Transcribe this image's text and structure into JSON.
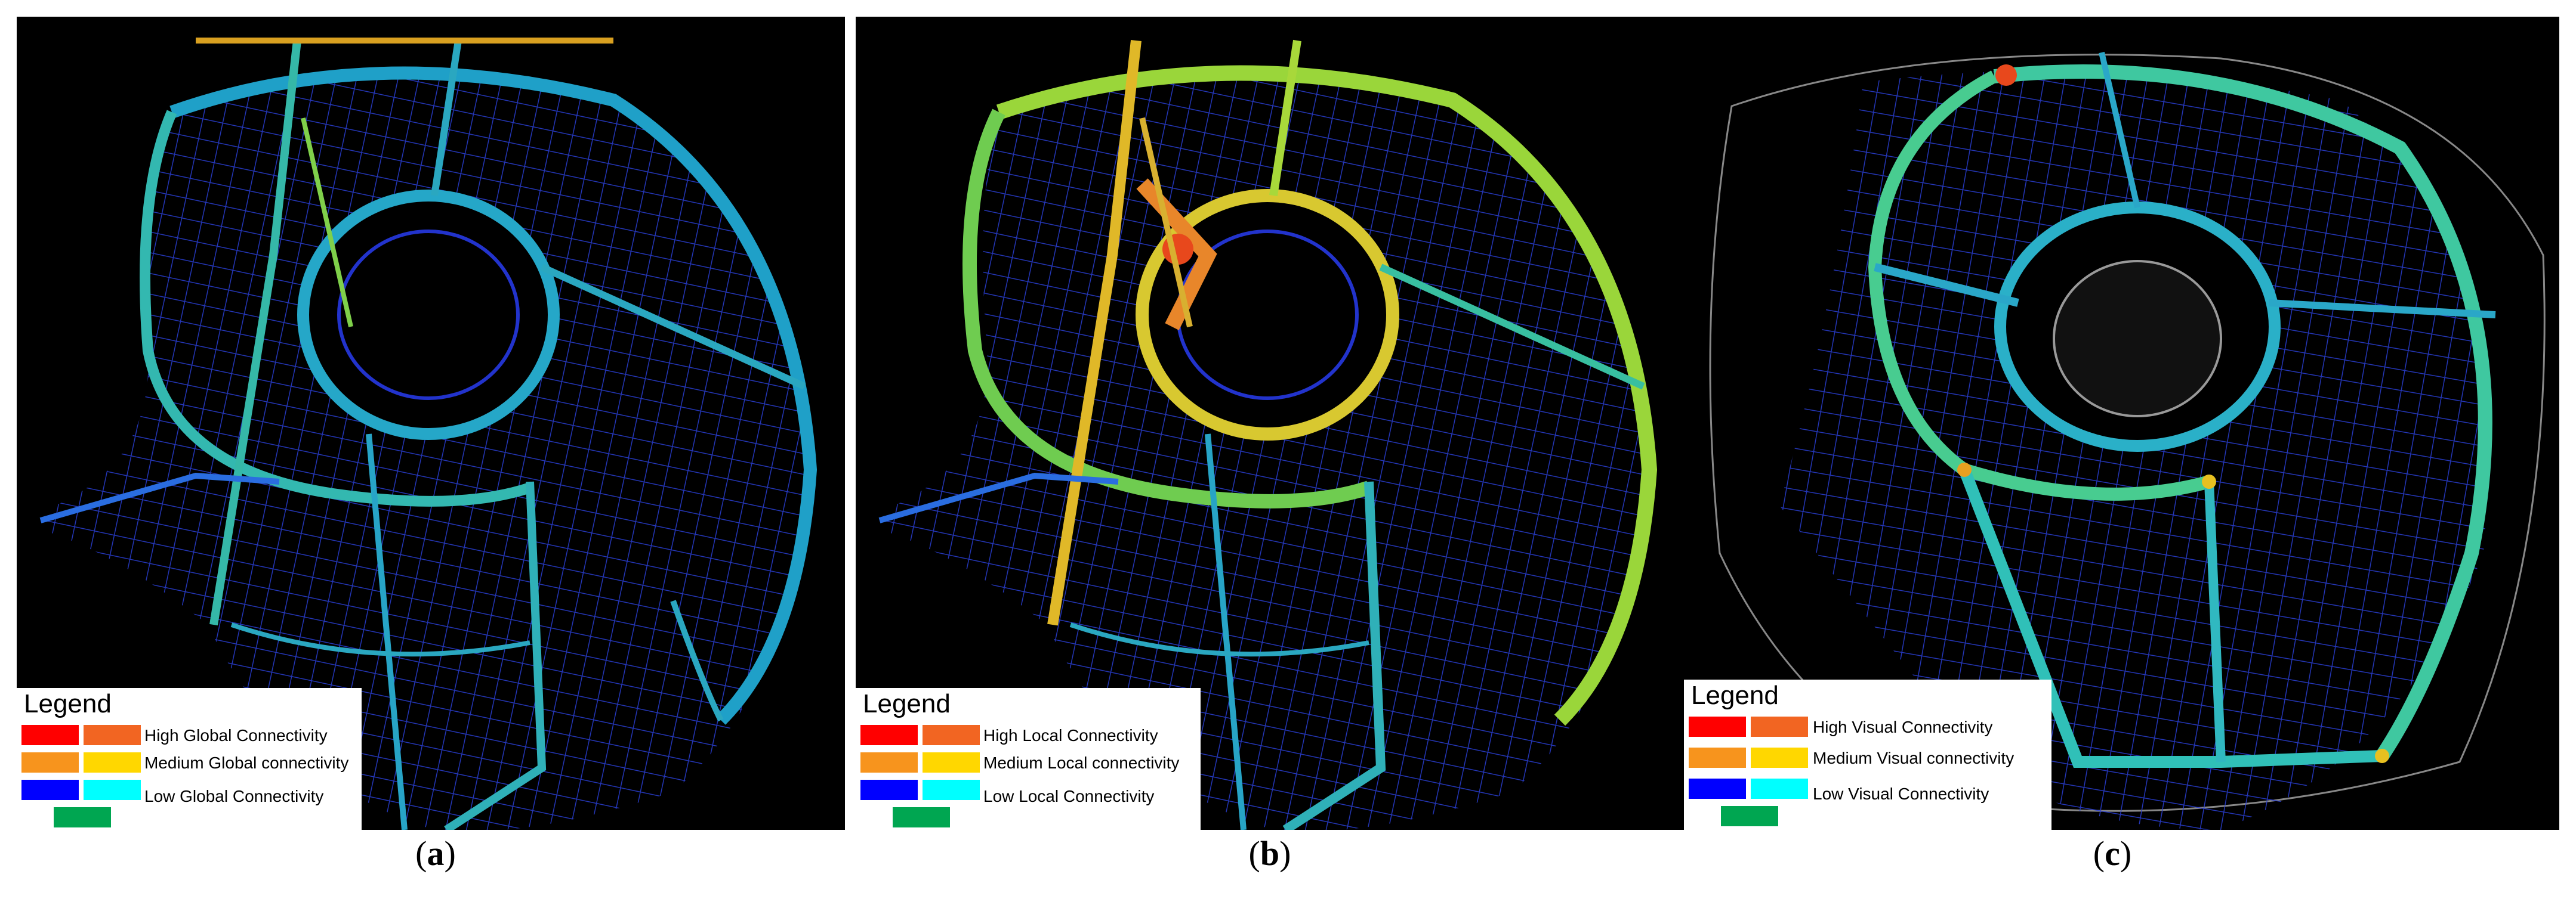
{
  "colors": {
    "background": "#000000",
    "red": "#ff0000",
    "orange_red": "#f26522",
    "orange": "#f7941d",
    "yellow": "#ffd700",
    "blue": "#0000ff",
    "cyan": "#00ffff",
    "green": "#00a651"
  },
  "panels": [
    {
      "caption_letter": "a",
      "legend": {
        "title": "Legend",
        "high": "High Global Connectivity",
        "medium": "Medium Global connectivity",
        "low": "Low Global Connectivity"
      }
    },
    {
      "caption_letter": "b",
      "legend": {
        "title": "Legend",
        "high": "High Local Connectivity",
        "medium": "Medium Local connectivity",
        "low": "Low Local Connectivity"
      }
    },
    {
      "caption_letter": "c",
      "legend": {
        "title": "Legend",
        "high": "High Visual Connectivity",
        "medium": "Medium Visual connectivity",
        "low": "Low Visual Connectivity"
      }
    }
  ]
}
